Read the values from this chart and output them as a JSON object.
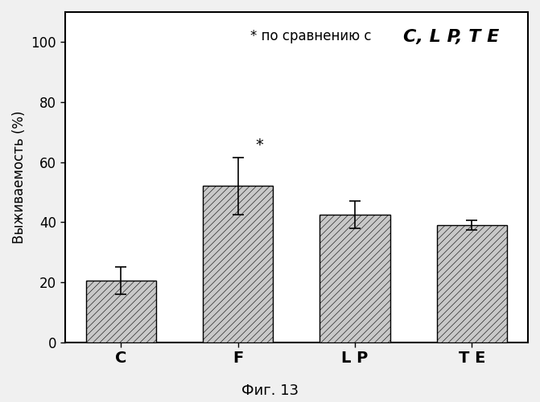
{
  "categories": [
    "C",
    "F",
    "L P",
    "T E"
  ],
  "values": [
    20.5,
    52.0,
    42.5,
    39.0
  ],
  "errors": [
    4.5,
    9.5,
    4.5,
    1.5
  ],
  "bar_color": "#c8c8c8",
  "bar_edge_color": "#000000",
  "bar_width": 0.6,
  "ylabel": "Выживаемость (%)",
  "ylim": [
    0,
    110
  ],
  "yticks": [
    0,
    20,
    40,
    60,
    80,
    100
  ],
  "annotation_text": "* по сравнению с",
  "annotation_text2": "C, L P, T E",
  "star_bar_index": 1,
  "figure_caption": "Фиг. 13",
  "background_color": "#f0f0f0",
  "plot_bg_color": "#ffffff",
  "hatch_pattern": "////",
  "axis_fontsize": 12,
  "tick_fontsize": 12,
  "caption_fontsize": 13,
  "annot_fontsize": 12,
  "annot2_fontsize": 16
}
